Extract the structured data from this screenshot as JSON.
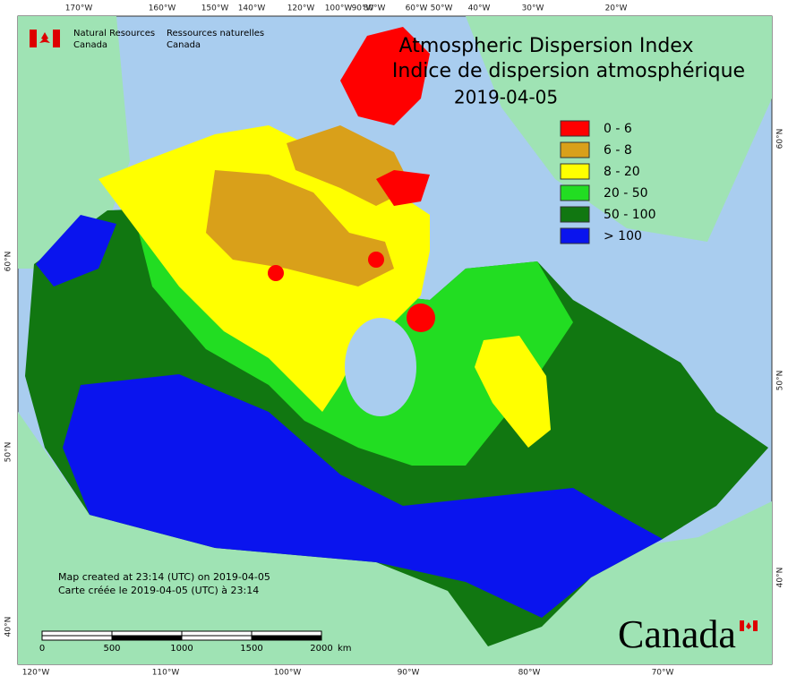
{
  "header": {
    "agency_en": [
      "Natural Resources",
      "Canada"
    ],
    "agency_fr": [
      "Ressources naturelles",
      "Canada"
    ]
  },
  "title": [
    "Atmospheric Dispersion Index",
    "Indice de dispersion atmosphérique",
    "2019-04-05"
  ],
  "legend": [
    {
      "label": "0 - 6",
      "color": "#ff0000"
    },
    {
      "label": "6 - 8",
      "color": "#d9a01a"
    },
    {
      "label": "8 - 20",
      "color": "#ffff00"
    },
    {
      "label": "20 - 50",
      "color": "#22dd22"
    },
    {
      "label": "50 - 100",
      "color": "#117711"
    },
    {
      "label": "> 100",
      "color": "#0a14ee"
    }
  ],
  "graticule": {
    "top": [
      "170°W",
      "160°W",
      "150°W",
      "140°W",
      "120°W",
      "100°W",
      "90°W",
      "80°W",
      "60°W",
      "50°W",
      "40°W",
      "30°W",
      "20°W"
    ],
    "bottom": [
      "120°W",
      "110°W",
      "100°W",
      "90°W",
      "80°W",
      "70°W"
    ],
    "left": [
      "60°N",
      "50°N",
      "40°N"
    ],
    "right": [
      "60°N",
      "50°N",
      "40°N"
    ]
  },
  "footer": [
    "Map created at 23:14 (UTC) on 2019-04-05",
    "Carte créée le 2019-04-05 (UTC) à 23:14"
  ],
  "scale_bar": {
    "labels": [
      0,
      500,
      1000,
      1500,
      2000
    ],
    "unit": "km"
  },
  "wordmark": "Canada"
}
